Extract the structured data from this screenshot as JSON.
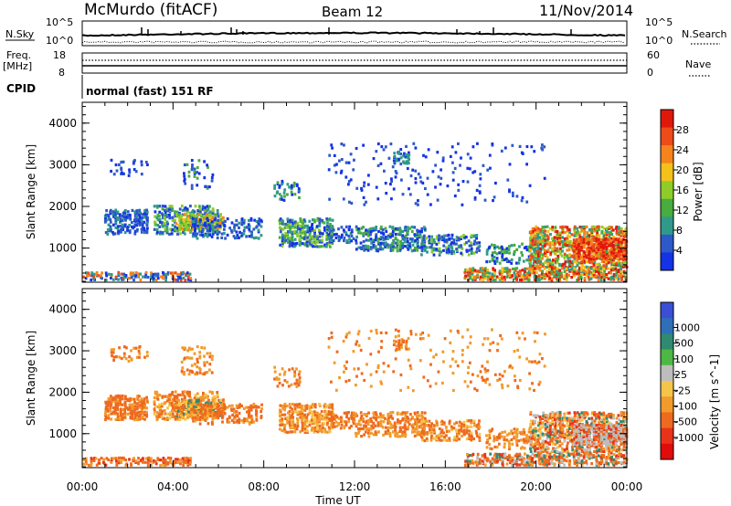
{
  "header": {
    "station": "McMurdo (fitACF)",
    "beam": "Beam 12",
    "date": "11/Nov/2014"
  },
  "top_panels": {
    "nsky_label": "N.Sky",
    "nsearch_label": "N.Search",
    "nsky_ticks": [
      "10^5",
      "10^0"
    ],
    "nsearch_ticks": [
      "10^5",
      "10^0"
    ],
    "freq_label_line1": "Freq.",
    "freq_label_line2": "[MHz]",
    "freq_ticks": [
      "18",
      "8"
    ],
    "nave_label": "Nave",
    "nave_ticks": [
      "60",
      "0"
    ],
    "cpid_label": "CPID",
    "cpid_value": "normal (fast) 151 RF"
  },
  "colors": {
    "power_scale": [
      "#1432e6",
      "#2e59c9",
      "#2f9a8a",
      "#48ac3e",
      "#8fcc2a",
      "#f4c01a",
      "#f5841c",
      "#ef4a1a",
      "#e0180c"
    ],
    "velocity_scale": [
      "#3a4fd6",
      "#2f6fb8",
      "#2f8a70",
      "#4db843",
      "#bdbdbd",
      "#f5c54a",
      "#f29a2c",
      "#ee6a1e",
      "#e8321a",
      "#e00b0b"
    ]
  },
  "chart_data": [
    {
      "type": "heatmap",
      "name": "power",
      "ylabel": "Slant Range [km]",
      "ylim": [
        180,
        4500
      ],
      "yticks": [
        "1000",
        "2000",
        "3000",
        "4000"
      ],
      "colorbar_label": "Power [dB]",
      "colorbar_ticks": [
        "4",
        "8",
        "12",
        "16",
        "20",
        "24",
        "28"
      ],
      "colorbar_range": [
        0,
        32
      ]
    },
    {
      "type": "heatmap",
      "name": "velocity",
      "xlabel": "Time UT",
      "ylabel": "Slant Range [km]",
      "ylim": [
        180,
        4500
      ],
      "yticks": [
        "1000",
        "2000",
        "3000",
        "4000"
      ],
      "xticks": [
        "00:00",
        "04:00",
        "08:00",
        "12:00",
        "16:00",
        "20:00",
        "00:00"
      ],
      "colorbar_label": "Velocity [m s^-1]",
      "colorbar_ticks": [
        "1000",
        "500",
        "100",
        "25",
        "-25",
        "-100",
        "-500",
        "-1000"
      ]
    }
  ]
}
